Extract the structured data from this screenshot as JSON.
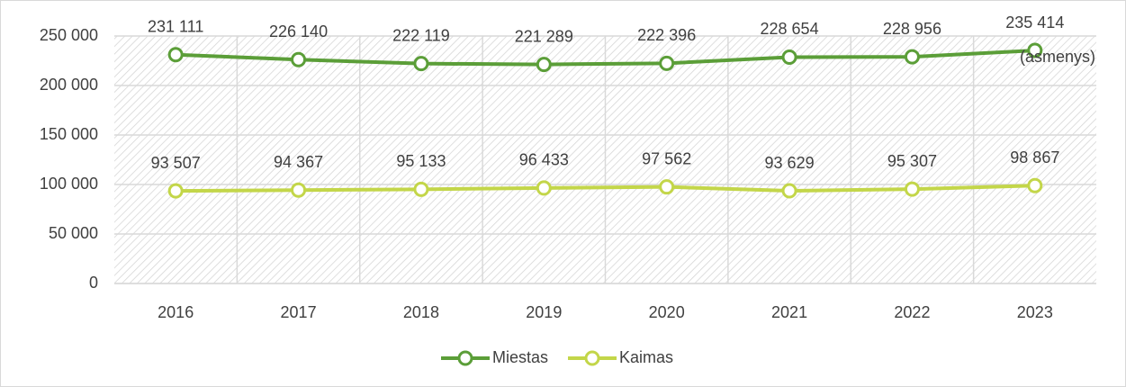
{
  "chart_data": {
    "type": "line",
    "categories": [
      "2016",
      "2017",
      "2018",
      "2019",
      "2020",
      "2021",
      "2022",
      "2023"
    ],
    "series": [
      {
        "name": "Miestas",
        "color": "#5b9e38",
        "values": [
          231111,
          226140,
          222119,
          221289,
          222396,
          228654,
          228956,
          235414
        ],
        "value_labels": [
          "231 111",
          "226 140",
          "222 119",
          "221 289",
          "222 396",
          "228 654",
          "228 956",
          "235 414"
        ]
      },
      {
        "name": "Kaimas",
        "color": "#c3d649",
        "values": [
          93507,
          94367,
          95133,
          96433,
          97562,
          93629,
          95307,
          98867
        ],
        "value_labels": [
          "93 507",
          "94 367",
          "95 133",
          "96 433",
          "97 562",
          "93 629",
          "95 307",
          "98 867"
        ]
      }
    ],
    "ylim": [
      0,
      250000
    ],
    "yticks": [
      0,
      {
        "value": 50000,
        "label": "50 000"
      },
      {
        "value": 100000,
        "label": "100 000"
      },
      {
        "value": 150000,
        "label": "150 000"
      },
      {
        "value": 200000,
        "label": "200 000"
      },
      {
        "value": 250000,
        "label": "250 000"
      }
    ],
    "annotation": "(asmenys)",
    "grid": true,
    "legend": "bottom"
  }
}
